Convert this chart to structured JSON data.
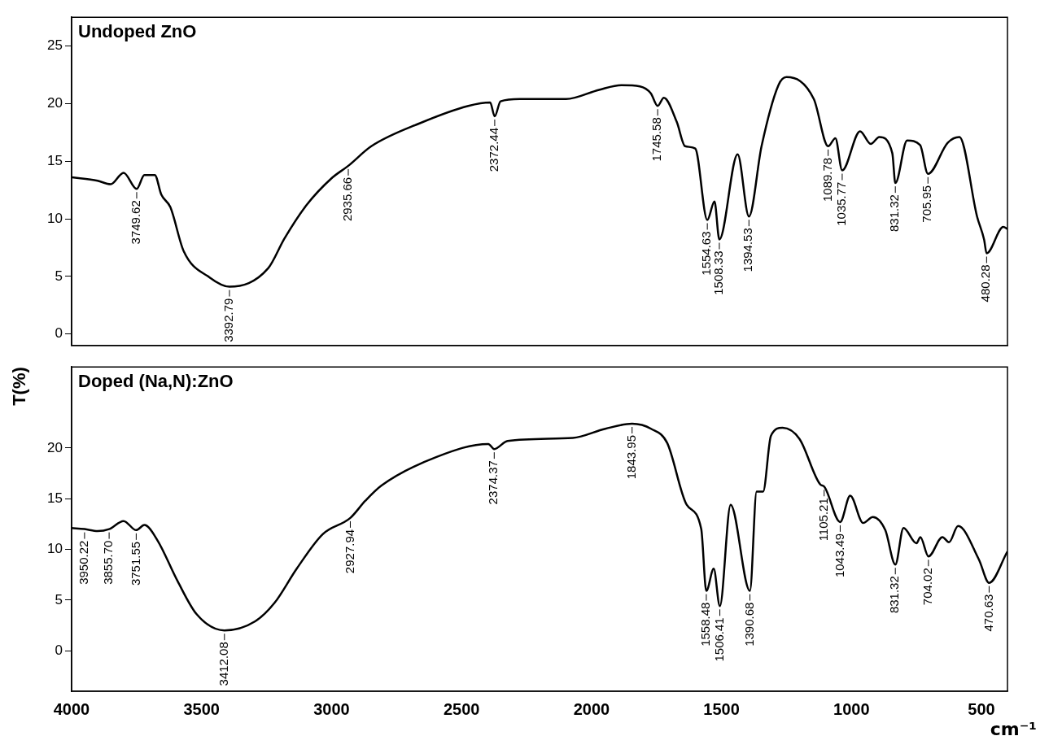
{
  "chart_data": [
    {
      "type": "line",
      "title": "Undoped ZnO",
      "color": "#000000",
      "x": [
        4000,
        3900,
        3850,
        3800,
        3749.62,
        3720,
        3680,
        3655,
        3620,
        3569,
        3469,
        3392.79,
        3244,
        3181,
        3096,
        3001,
        2935.66,
        2847,
        2660,
        2474,
        2390,
        2372.44,
        2350,
        2276,
        2098,
        1971,
        1885,
        1814,
        1772,
        1745.58,
        1722,
        1672,
        1640,
        1601,
        1554.63,
        1527,
        1508.33,
        1438,
        1394.53,
        1346,
        1281,
        1250,
        1145,
        1089.78,
        1062,
        1035.77,
        967,
        926,
        893,
        843,
        831.32,
        786,
        736,
        705.95,
        630,
        585,
        517,
        490,
        480.28,
        416,
        400
      ],
      "values": [
        13.6,
        13.3,
        13.0,
        14.0,
        12.6,
        13.8,
        13.8,
        12.1,
        11.0,
        7.2,
        4.9,
        4.1,
        5.7,
        8.3,
        11.2,
        13.5,
        14.6,
        16.3,
        18.3,
        19.8,
        20.1,
        18.9,
        20.2,
        20.4,
        20.4,
        21.2,
        21.6,
        21.5,
        20.9,
        19.8,
        20.5,
        18.4,
        16.3,
        16.1,
        9.9,
        11.5,
        8.2,
        15.6,
        10.2,
        16.3,
        21.6,
        22.3,
        20.4,
        16.3,
        17.0,
        14.2,
        17.6,
        16.5,
        17.1,
        15.7,
        13.1,
        16.8,
        16.4,
        13.9,
        16.6,
        17.1,
        10.2,
        8.2,
        7.0,
        9.3,
        9.1
      ],
      "xlim": [
        4000,
        400
      ],
      "xticks": [
        4000,
        3500,
        3000,
        2500,
        2000,
        1500,
        1000,
        500
      ],
      "ylim": [
        -1,
        27.5
      ],
      "yticks": [
        0,
        5,
        10,
        15,
        20,
        25
      ],
      "tick_labels": "y",
      "annotations": [
        {
          "text": "3749.62",
          "x": 3749.62,
          "y": 12.6
        },
        {
          "text": "3392.79",
          "x": 3392.79,
          "y": 4.1
        },
        {
          "text": "2935.66",
          "x": 2935.66,
          "y": 14.6
        },
        {
          "text": "2372.44",
          "x": 2372.44,
          "y": 18.9
        },
        {
          "text": "1745.58",
          "x": 1745.58,
          "y": 19.8
        },
        {
          "text": "1554.63",
          "x": 1554.63,
          "y": 9.9
        },
        {
          "text": "1508.33",
          "x": 1508.33,
          "y": 8.2
        },
        {
          "text": "1394.53",
          "x": 1394.53,
          "y": 10.2
        },
        {
          "text": "1089.78",
          "x": 1089.78,
          "y": 16.3
        },
        {
          "text": "1035.77",
          "x": 1035.77,
          "y": 14.2
        },
        {
          "text": "831.32",
          "x": 831.32,
          "y": 13.1
        },
        {
          "text": "705.95",
          "x": 705.95,
          "y": 13.9
        },
        {
          "text": "480.28",
          "x": 480.28,
          "y": 7.0
        }
      ]
    },
    {
      "type": "line",
      "title": "Doped (Na,N):ZnO",
      "color": "#000000",
      "ylabel": "T(%)",
      "xlabel": "cm⁻¹",
      "x": [
        4000,
        3950.22,
        3900,
        3855.7,
        3800,
        3751.55,
        3720,
        3670,
        3593,
        3519,
        3412.08,
        3294,
        3220,
        3134,
        3034,
        2927.94,
        2870,
        2808,
        2598,
        2397,
        2374.37,
        2323,
        2072,
        1947,
        1843.95,
        1771,
        1709,
        1634,
        1578,
        1558.48,
        1530,
        1506.41,
        1465,
        1390.68,
        1365,
        1340,
        1310,
        1265,
        1200,
        1120,
        1105.21,
        1043.49,
        1005,
        955,
        918,
        870,
        831.32,
        800,
        750,
        735,
        704.02,
        650,
        625,
        590,
        510,
        470.63,
        400
      ],
      "values": [
        12.1,
        12.0,
        11.8,
        12.0,
        12.8,
        11.9,
        12.4,
        10.9,
        6.9,
        3.6,
        2.0,
        2.9,
        4.7,
        8.1,
        11.5,
        13.1,
        14.8,
        16.3,
        19.1,
        20.4,
        19.9,
        20.7,
        21.0,
        21.9,
        22.4,
        21.9,
        20.5,
        14.4,
        12.0,
        5.9,
        8.1,
        4.4,
        14.4,
        5.9,
        15.7,
        15.7,
        21.2,
        22.0,
        20.9,
        16.4,
        16.2,
        12.7,
        15.3,
        12.6,
        13.2,
        11.9,
        8.5,
        12.1,
        10.6,
        11.2,
        9.3,
        11.2,
        10.7,
        12.3,
        9.0,
        6.7,
        9.8
      ],
      "xlim": [
        4000,
        400
      ],
      "xticks": [
        4000,
        3500,
        3000,
        2500,
        2000,
        1500,
        1000,
        500
      ],
      "ylim": [
        -4,
        28
      ],
      "yticks": [
        0,
        5,
        10,
        15,
        20
      ],
      "annotations": [
        {
          "text": "3950.22",
          "x": 3950.22,
          "y": 12.0
        },
        {
          "text": "3855.70",
          "x": 3855.7,
          "y": 12.0
        },
        {
          "text": "3751.55",
          "x": 3751.55,
          "y": 11.9
        },
        {
          "text": "3412.08",
          "x": 3412.08,
          "y": 2.0
        },
        {
          "text": "2927.94",
          "x": 2927.94,
          "y": 13.1
        },
        {
          "text": "2374.37",
          "x": 2374.37,
          "y": 19.9
        },
        {
          "text": "1843.95",
          "x": 1843.95,
          "y": 22.4
        },
        {
          "text": "1558.48",
          "x": 1558.48,
          "y": 5.9
        },
        {
          "text": "1506.41",
          "x": 1506.41,
          "y": 4.4
        },
        {
          "text": "1390.68",
          "x": 1390.68,
          "y": 5.9
        },
        {
          "text": "1105.21",
          "x": 1105.21,
          "y": 16.2
        },
        {
          "text": "1043.49",
          "x": 1043.49,
          "y": 12.7
        },
        {
          "text": "831.32",
          "x": 831.32,
          "y": 8.5
        },
        {
          "text": "704.02",
          "x": 704.02,
          "y": 9.3
        },
        {
          "text": "470.63",
          "x": 470.63,
          "y": 6.7
        }
      ]
    }
  ]
}
